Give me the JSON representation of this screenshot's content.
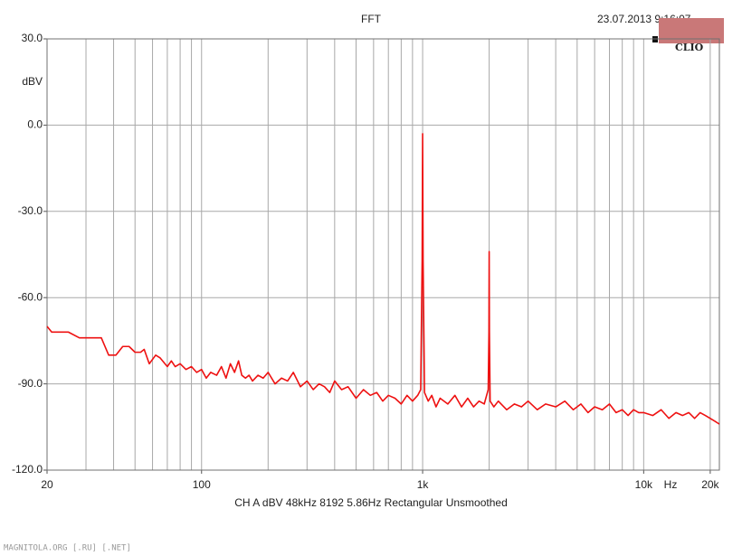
{
  "chart_data": {
    "type": "line",
    "title": "FFT",
    "timestamp": "23.07.2013 9:16:07",
    "brand": "CLIO",
    "ylabel": "dBV",
    "footer": "CH A   dBV   48kHz   8192   5.86Hz   Rectangular   Unsmoothed",
    "watermark": "MAGNITOLA.ORG [.RU] [.NET]",
    "x_unit": "Hz",
    "xscale": "log",
    "xlim": [
      20,
      22000
    ],
    "ylim": [
      -120,
      30
    ],
    "xticks": [
      20,
      100,
      {
        "value": 1000,
        "label": "1k"
      },
      {
        "value": 10000,
        "label": "10k"
      },
      {
        "value": 20000,
        "label": "20k"
      }
    ],
    "xgrid": [
      30,
      40,
      50,
      60,
      70,
      80,
      90,
      100,
      200,
      300,
      400,
      500,
      600,
      700,
      800,
      900,
      1000,
      2000,
      3000,
      4000,
      5000,
      6000,
      7000,
      8000,
      9000,
      10000,
      20000
    ],
    "yticks": [
      {
        "value": 30,
        "label": "30.0"
      },
      {
        "value": 0,
        "label": "0.0"
      },
      {
        "value": -30,
        "label": "-30.0"
      },
      {
        "value": -60,
        "label": "-60.0"
      },
      {
        "value": -90,
        "label": "-90.0"
      },
      {
        "value": -120,
        "label": "-120.0"
      }
    ],
    "grid": true,
    "series": [
      {
        "name": "CH A",
        "color": "#ee1111",
        "x": [
          20,
          21,
          22,
          25,
          28,
          29.3,
          35.2,
          38,
          41,
          44,
          47,
          50,
          53,
          55,
          58,
          62,
          65,
          70,
          73,
          76,
          80,
          85,
          90,
          95,
          100,
          105,
          110,
          117,
          123,
          129,
          135,
          141,
          147,
          152,
          158,
          164,
          170,
          180,
          190,
          200,
          215,
          230,
          245,
          260,
          280,
          300,
          320,
          340,
          360,
          380,
          400,
          430,
          460,
          500,
          540,
          580,
          620,
          660,
          700,
          750,
          800,
          850,
          900,
          950,
          980,
          995,
          1000,
          1005,
          1020,
          1060,
          1100,
          1150,
          1200,
          1300,
          1400,
          1500,
          1600,
          1700,
          1800,
          1900,
          1980,
          1995,
          2000,
          2005,
          2020,
          2100,
          2200,
          2400,
          2600,
          2800,
          3000,
          3300,
          3600,
          4000,
          4400,
          4800,
          5200,
          5600,
          6000,
          6500,
          7000,
          7500,
          8000,
          8500,
          9000,
          9500,
          10000,
          11000,
          12000,
          13000,
          14000,
          15000,
          16000,
          17000,
          18000,
          19000,
          20000,
          21000,
          22000
        ],
        "values": [
          -70,
          -72,
          -72,
          -72,
          -74,
          -74,
          -74,
          -80,
          -80,
          -77,
          -77,
          -79,
          -79,
          -78,
          -83,
          -80,
          -81,
          -84,
          -82,
          -84,
          -83,
          -85,
          -84,
          -86,
          -85,
          -88,
          -86,
          -87,
          -84,
          -88,
          -83,
          -86,
          -82,
          -87,
          -88,
          -87,
          -89,
          -87,
          -88,
          -86,
          -90,
          -88,
          -89,
          -86,
          -91,
          -89,
          -92,
          -90,
          -91,
          -93,
          -89,
          -92,
          -91,
          -95,
          -92,
          -94,
          -93,
          -96,
          -94,
          -95,
          -97,
          -94,
          -96,
          -94,
          -92,
          -47,
          -3,
          -47,
          -93,
          -96,
          -94,
          -98,
          -95,
          -97,
          -94,
          -98,
          -95,
          -98,
          -96,
          -97,
          -92,
          -72,
          -44,
          -72,
          -96,
          -98,
          -96,
          -99,
          -97,
          -98,
          -96,
          -99,
          -97,
          -98,
          -96,
          -99,
          -97,
          -100,
          -98,
          -99,
          -97,
          -100,
          -99,
          -101,
          -99,
          -100,
          -100,
          -101,
          -99,
          -102,
          -100,
          -101,
          -100,
          -102,
          -100,
          -101,
          -102,
          -103,
          -104
        ]
      }
    ]
  }
}
